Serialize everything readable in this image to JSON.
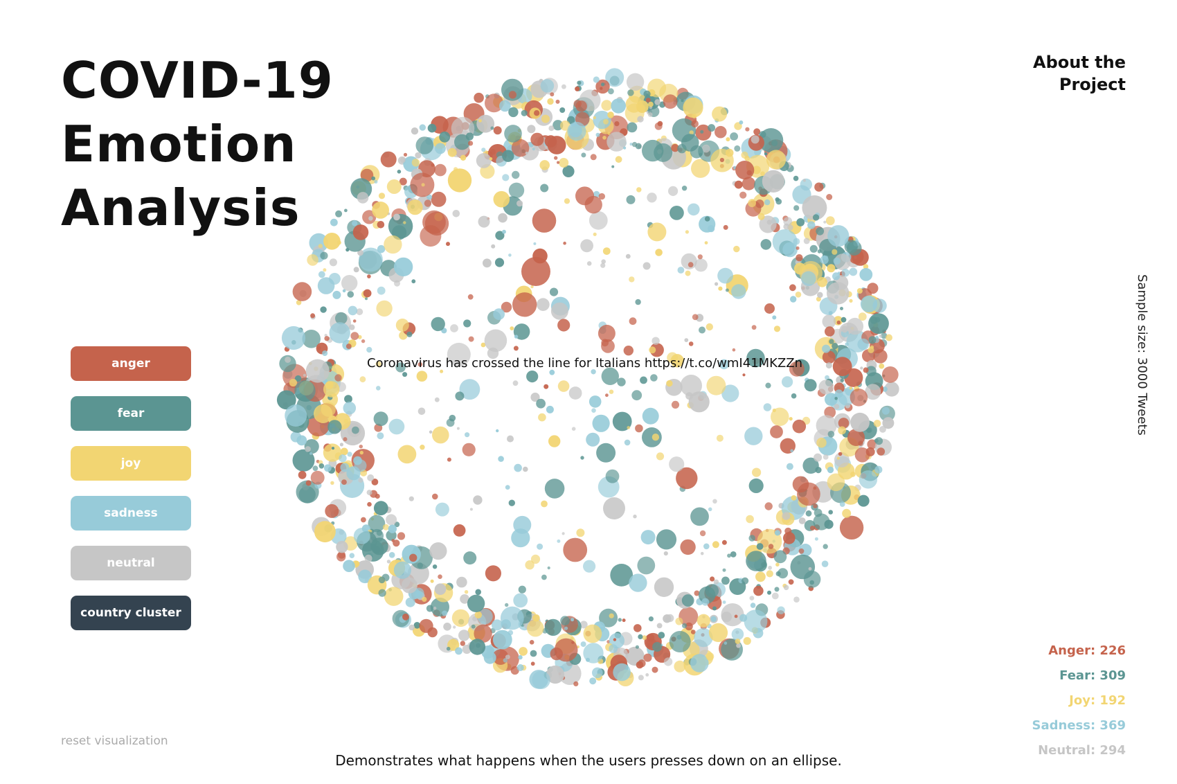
{
  "title": {
    "line1": "COVID-19",
    "line2": "Emotion",
    "line3": "Analysis"
  },
  "about_link": "About the Project",
  "sample_size": "Sample size: 3000 Tweets",
  "legend": [
    {
      "label": "anger",
      "color": "#c5634c"
    },
    {
      "label": "fear",
      "color": "#5b9592"
    },
    {
      "label": "joy",
      "color": "#f2d572"
    },
    {
      "label": "sadness",
      "color": "#97cbd9"
    },
    {
      "label": "neutral",
      "color": "#c6c6c6"
    },
    {
      "label": "country cluster",
      "color": "#344350"
    }
  ],
  "reset_label": "reset visualization",
  "tooltip_text": "Coronavirus has crossed the line for Italians https://t.co/wmI41MKZZn",
  "caption": "Demonstrates what happens when the users presses down on an ellipse.",
  "counts": [
    {
      "label": "Anger: 226",
      "color": "#c5634c"
    },
    {
      "label": "Fear: 309",
      "color": "#5b9592"
    },
    {
      "label": "Joy: 192",
      "color": "#f2d572"
    },
    {
      "label": "Sadness: 369",
      "color": "#97cbd9"
    },
    {
      "label": "Neutral: 294",
      "color": "#c6c6c6"
    }
  ]
}
